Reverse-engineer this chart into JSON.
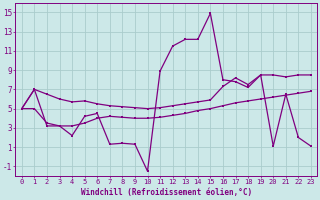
{
  "xlabel": "Windchill (Refroidissement éolien,°C)",
  "background_color": "#cce8e8",
  "grid_color": "#aacccc",
  "line_color": "#800080",
  "x_hours": [
    0,
    1,
    2,
    3,
    4,
    5,
    6,
    7,
    8,
    9,
    10,
    11,
    12,
    13,
    14,
    15,
    16,
    17,
    18,
    19,
    20,
    21,
    22,
    23
  ],
  "windchill": [
    5.0,
    7.0,
    3.2,
    3.2,
    2.2,
    4.2,
    4.5,
    1.3,
    1.4,
    1.3,
    -1.5,
    8.9,
    11.5,
    12.2,
    12.2,
    14.9,
    8.0,
    7.8,
    7.2,
    8.5,
    1.1,
    6.5,
    2.0,
    1.1
  ],
  "line_upper": [
    5.0,
    7.0,
    6.5,
    6.0,
    5.7,
    5.8,
    5.5,
    5.3,
    5.2,
    5.1,
    5.0,
    5.1,
    5.3,
    5.5,
    5.7,
    5.9,
    7.3,
    8.2,
    7.5,
    8.5,
    8.5,
    8.3,
    8.5,
    8.5
  ],
  "line_lower": [
    5.0,
    5.0,
    3.5,
    3.2,
    3.2,
    3.5,
    4.0,
    4.2,
    4.1,
    4.0,
    4.0,
    4.1,
    4.3,
    4.5,
    4.8,
    5.0,
    5.3,
    5.6,
    5.8,
    6.0,
    6.2,
    6.4,
    6.6,
    6.8
  ],
  "ylim_min": -2,
  "ylim_max": 16,
  "xlim_min": -0.5,
  "xlim_max": 23.5,
  "yticks": [
    -1,
    1,
    3,
    5,
    7,
    9,
    11,
    13,
    15
  ],
  "xticks": [
    0,
    1,
    2,
    3,
    4,
    5,
    6,
    7,
    8,
    9,
    10,
    11,
    12,
    13,
    14,
    15,
    16,
    17,
    18,
    19,
    20,
    21,
    22,
    23
  ],
  "tick_fontsize": 5,
  "xlabel_fontsize": 5.5,
  "marker_size": 2.0,
  "line_width": 0.9
}
